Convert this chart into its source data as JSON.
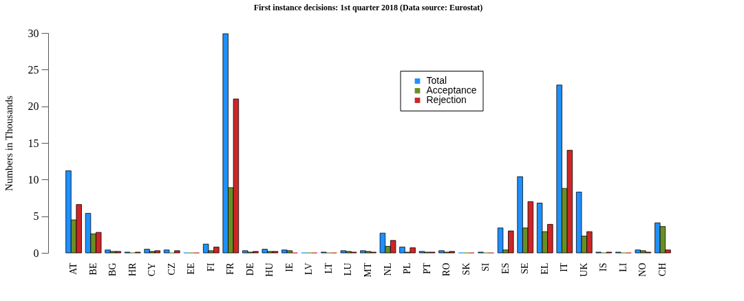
{
  "chart_data": {
    "type": "bar",
    "title": "First instance decisions:  1st quarter 2018 (Data source: Eurostat)",
    "ylabel": "Numbers in Thousands",
    "categories": [
      "AT",
      "BE",
      "BG",
      "HR",
      "CY",
      "CZ",
      "EE",
      "FI",
      "FR",
      "DE",
      "HU",
      "IE",
      "LV",
      "LT",
      "LU",
      "MT",
      "NL",
      "PL",
      "PT",
      "RO",
      "SK",
      "SI",
      "ES",
      "SE",
      "EL",
      "IT",
      "UK",
      "IS",
      "LI",
      "NO",
      "CH"
    ],
    "series": [
      {
        "name": "Total",
        "color": "#1e90ff",
        "values": [
          11.2,
          5.4,
          0.4,
          0.1,
          0.5,
          0.4,
          0,
          1.2,
          29.9,
          0.3,
          0.5,
          0.4,
          0,
          0.1,
          0.3,
          0.3,
          2.7,
          0.8,
          0.2,
          0.3,
          0,
          0.1,
          3.4,
          10.4,
          6.8,
          22.9,
          8.3,
          0.1,
          0.1,
          0.4,
          4.1
        ]
      },
      {
        "name": "Acceptance",
        "color": "#6b8e23",
        "values": [
          4.5,
          2.6,
          0.2,
          0,
          0.2,
          0,
          0,
          0.3,
          8.9,
          0.1,
          0.2,
          0.3,
          0,
          0,
          0.2,
          0.2,
          0.9,
          0.1,
          0.1,
          0.1,
          0,
          0,
          0.4,
          3.4,
          2.9,
          8.8,
          2.3,
          0,
          0,
          0.3,
          3.6
        ]
      },
      {
        "name": "Rejection",
        "color": "#cd2626",
        "values": [
          6.6,
          2.8,
          0.2,
          0.1,
          0.3,
          0.3,
          0,
          0.8,
          21.0,
          0.2,
          0.2,
          0,
          0,
          0,
          0.1,
          0.1,
          1.7,
          0.7,
          0.1,
          0.2,
          0,
          0,
          3.0,
          7.0,
          3.9,
          14.0,
          2.9,
          0.1,
          0,
          0.1,
          0.4
        ]
      }
    ],
    "ylim": [
      0,
      30
    ],
    "yticks": [
      0,
      5,
      10,
      15,
      20,
      25,
      30
    ],
    "legend": "top right"
  }
}
